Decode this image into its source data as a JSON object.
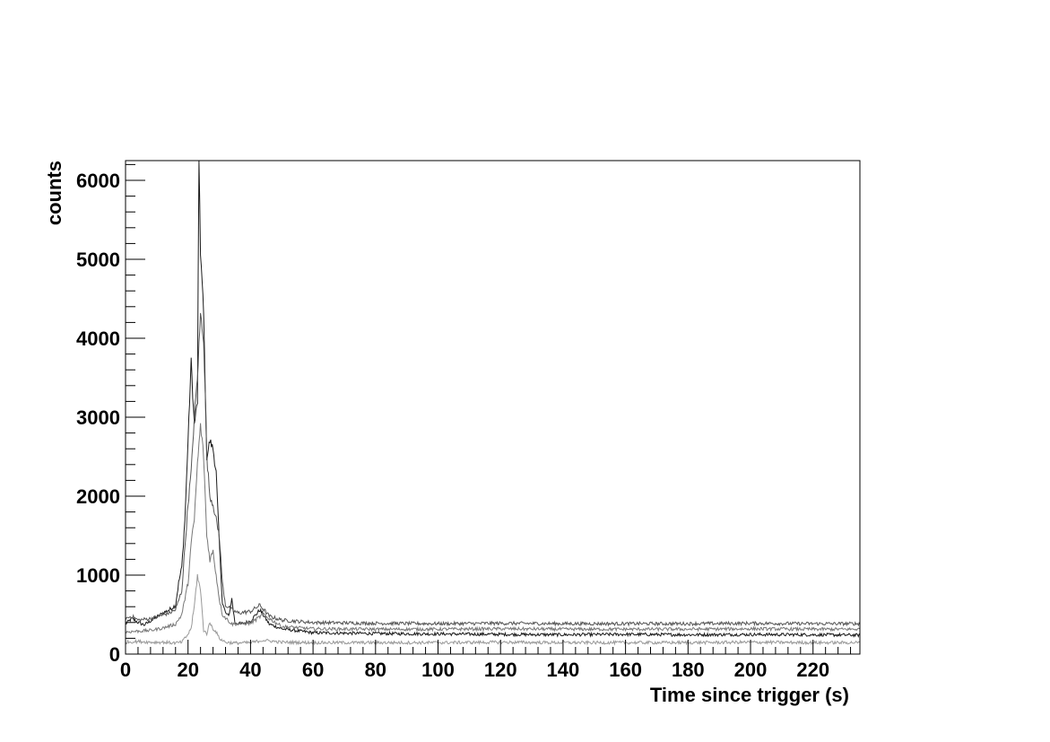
{
  "chart_data": {
    "type": "line",
    "title": "",
    "xlabel": "Time since trigger (s)",
    "ylabel": "counts",
    "xlim": [
      0,
      235
    ],
    "ylim": [
      0,
      6250
    ],
    "x_ticks": [
      0,
      20,
      40,
      60,
      80,
      100,
      120,
      140,
      160,
      180,
      200,
      220
    ],
    "y_ticks": [
      0,
      1000,
      2000,
      3000,
      4000,
      5000,
      6000
    ],
    "grid": false,
    "legend": "none",
    "series": [
      {
        "color": "#1a1a1a",
        "x": [
          0,
          2,
          4,
          6,
          8,
          10,
          12,
          14,
          16,
          17,
          18,
          19,
          20,
          21,
          22,
          23,
          23.5,
          24,
          25,
          26,
          27,
          28,
          29,
          30,
          31,
          32,
          33,
          34,
          35,
          37,
          40,
          43,
          46,
          50,
          60,
          80,
          100,
          120,
          140,
          160,
          180,
          200,
          220,
          235
        ],
        "y": [
          380,
          450,
          400,
          370,
          420,
          470,
          520,
          560,
          620,
          900,
          1100,
          1700,
          2700,
          3700,
          2900,
          3200,
          6300,
          5100,
          4300,
          2500,
          2700,
          2600,
          2300,
          1400,
          650,
          520,
          480,
          700,
          400,
          380,
          420,
          560,
          380,
          320,
          270,
          260,
          255,
          250,
          245,
          250,
          245,
          248,
          245,
          240
        ]
      },
      {
        "color": "#555555",
        "x": [
          0,
          2,
          4,
          6,
          8,
          10,
          12,
          14,
          16,
          18,
          20,
          21,
          22,
          23,
          24,
          25,
          26,
          27,
          28,
          29,
          30,
          31,
          32,
          34,
          36,
          40,
          43,
          46,
          50,
          60,
          80,
          100,
          120,
          140,
          160,
          180,
          200,
          220,
          235
        ],
        "y": [
          450,
          480,
          430,
          440,
          450,
          470,
          500,
          520,
          560,
          800,
          1900,
          2300,
          3000,
          3500,
          4300,
          4000,
          2500,
          2000,
          1900,
          1700,
          1500,
          900,
          620,
          560,
          520,
          540,
          620,
          480,
          430,
          400,
          390,
          385,
          390,
          385,
          385,
          385,
          390,
          385,
          385
        ]
      },
      {
        "color": "#777777",
        "x": [
          0,
          4,
          8,
          12,
          16,
          18,
          20,
          21,
          22,
          23,
          24,
          25,
          26,
          27,
          28,
          29,
          30,
          31,
          34,
          40,
          44,
          50,
          60,
          80,
          100,
          120,
          140,
          160,
          180,
          200,
          220,
          235
        ],
        "y": [
          280,
          290,
          300,
          330,
          380,
          500,
          900,
          1400,
          1700,
          2400,
          2900,
          2500,
          1500,
          1200,
          1300,
          1000,
          700,
          500,
          380,
          390,
          500,
          350,
          320,
          315,
          315,
          320,
          315,
          315,
          315,
          320,
          315,
          315
        ]
      },
      {
        "color": "#999999",
        "x": [
          0,
          4,
          8,
          12,
          16,
          18,
          19,
          20,
          21,
          22,
          23,
          24,
          25,
          26,
          27,
          28,
          29,
          30,
          32,
          35,
          40,
          44,
          50,
          60,
          80,
          100,
          120,
          140,
          160,
          180,
          200,
          220,
          235
        ],
        "y": [
          150,
          160,
          150,
          150,
          140,
          150,
          200,
          250,
          330,
          600,
          1000,
          800,
          300,
          260,
          400,
          320,
          280,
          200,
          150,
          140,
          145,
          175,
          150,
          145,
          145,
          145,
          150,
          145,
          145,
          145,
          150,
          145,
          145
        ]
      }
    ]
  }
}
